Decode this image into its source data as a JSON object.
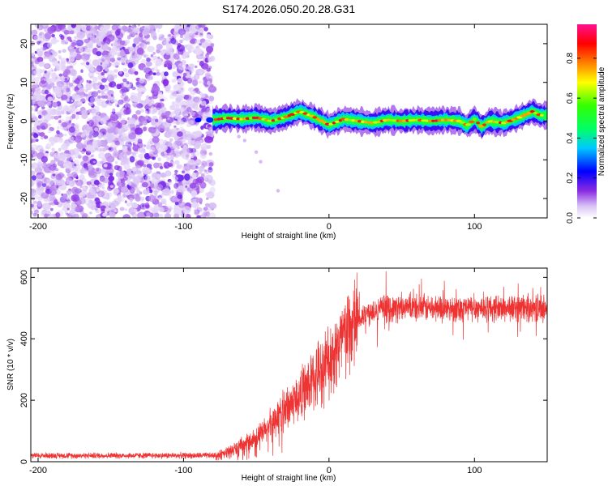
{
  "figure": {
    "title": "S174.2026.050.20.28.G31"
  },
  "chart_data": [
    {
      "type": "heatmap",
      "name": "spectrogram",
      "xlabel": "Height of straight line (km)",
      "ylabel": "Frequency (Hz)",
      "xlim": [
        -205,
        150
      ],
      "ylim": [
        -25,
        25
      ],
      "x_ticks": [
        -200,
        -100,
        0,
        100
      ],
      "y_ticks": [
        -20,
        -10,
        0,
        10,
        20
      ],
      "noise_region": {
        "x_range": [
          -205,
          -80
        ],
        "description_value": "scattered low amplitude (0.1-0.4)"
      },
      "signal_region": {
        "x_range": [
          -80,
          150
        ]
      },
      "signal_track": [
        {
          "x": -80,
          "f": 0.3
        },
        {
          "x": -70,
          "f": 0.8
        },
        {
          "x": -60,
          "f": 0.5
        },
        {
          "x": -50,
          "f": 0.9
        },
        {
          "x": -40,
          "f": 0.0
        },
        {
          "x": -30,
          "f": 1.0
        },
        {
          "x": -20,
          "f": 2.5
        },
        {
          "x": -10,
          "f": 1.0
        },
        {
          "x": 0,
          "f": -1.0
        },
        {
          "x": 10,
          "f": 0.5
        },
        {
          "x": 20,
          "f": 0.0
        },
        {
          "x": 30,
          "f": -0.5
        },
        {
          "x": 40,
          "f": 0.3
        },
        {
          "x": 50,
          "f": 0.0
        },
        {
          "x": 60,
          "f": 0.3
        },
        {
          "x": 70,
          "f": 0.0
        },
        {
          "x": 80,
          "f": 0.3
        },
        {
          "x": 90,
          "f": 0.0
        },
        {
          "x": 95,
          "f": -1.2
        },
        {
          "x": 100,
          "f": 0.5
        },
        {
          "x": 105,
          "f": -1.5
        },
        {
          "x": 110,
          "f": 0.0
        },
        {
          "x": 120,
          "f": -0.5
        },
        {
          "x": 130,
          "f": 0.8
        },
        {
          "x": 140,
          "f": 2.5
        },
        {
          "x": 145,
          "f": 1.5
        },
        {
          "x": 150,
          "f": 1.5
        }
      ],
      "colorbar": {
        "label": "Normalized spectral amplitude",
        "range": [
          0,
          0.97
        ],
        "ticks": [
          "0.0",
          "0.2",
          "0.4",
          "0.6",
          "0.8"
        ],
        "tick_values": [
          0.0,
          0.2,
          0.4,
          0.6,
          0.8
        ]
      }
    },
    {
      "type": "line",
      "name": "snr",
      "xlabel": "Height of straight line (km)",
      "ylabel": "SNR (10 * v/v)",
      "xlim": [
        -205,
        150
      ],
      "ylim": [
        0,
        630
      ],
      "x_ticks": [
        -200,
        -100,
        0,
        100
      ],
      "y_ticks": [
        0,
        200,
        400,
        600
      ],
      "color": "#ee3333",
      "series": [
        {
          "name": "SNR envelope",
          "x": [
            -205,
            -80,
            -75,
            -60,
            -45,
            -35,
            -20,
            -10,
            0,
            10,
            20,
            30,
            50,
            100,
            150
          ],
          "mean": [
            20,
            20,
            20,
            50,
            95,
            150,
            215,
            270,
            330,
            400,
            460,
            495,
            500,
            500,
            500
          ]
        }
      ]
    }
  ]
}
